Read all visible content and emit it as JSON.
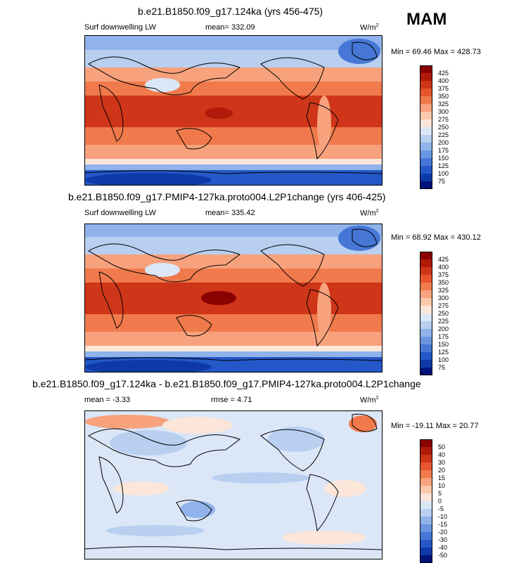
{
  "season": "MAM",
  "variable_label": "Surf downwelling LW",
  "units_base": "W/m",
  "units_exp": "2",
  "panels": [
    {
      "title": "b.e21.B1850.f09_g17.124ka (yrs 456-475)",
      "variable": "Surf downwelling LW",
      "stat": "mean= 332.09",
      "minmax": "Min = 69.46 Max = 428.73",
      "colorbar": [
        "425",
        "400",
        "375",
        "350",
        "325",
        "300",
        "275",
        "250",
        "225",
        "200",
        "175",
        "150",
        "125",
        "100",
        "75"
      ]
    },
    {
      "title": "b.e21.B1850.f09_g17.PMIP4-127ka.proto004.L2P1change (yrs 406-425)",
      "variable": "Surf downwelling LW",
      "stat": "mean= 335.42",
      "minmax": "Min = 68.92 Max = 430.12",
      "colorbar": [
        "425",
        "400",
        "375",
        "350",
        "325",
        "300",
        "275",
        "250",
        "225",
        "200",
        "175",
        "150",
        "125",
        "100",
        "75"
      ]
    },
    {
      "title": "b.e21.B1850.f09_g17.124ka - b.e21.B1850.f09_g17.PMIP4-127ka.proto004.L2P1change",
      "stat": "mean =  -3.33",
      "stat2": "rmse =   4.71",
      "minmax": "Min = -19.11 Max =  20.77",
      "colorbar": [
        "50",
        "40",
        "30",
        "20",
        "15",
        "10",
        "5",
        "0",
        "-5",
        "-10",
        "-15",
        "-20",
        "-30",
        "-40",
        "-50"
      ]
    }
  ],
  "colors": {
    "abs_scale": [
      "#8b0000",
      "#b01a0a",
      "#cf3518",
      "#e6552c",
      "#f07a4c",
      "#f7a27c",
      "#fcc9ab",
      "#fbe6d9",
      "#dbe6f7",
      "#b8cff0",
      "#8fb3ea",
      "#6a95e0",
      "#4677d6",
      "#2457c8",
      "#0d3aa8",
      "#00137a"
    ],
    "diff_scale": [
      "#8b0000",
      "#b01a0a",
      "#cf3518",
      "#e6552c",
      "#f07a4c",
      "#f7a27c",
      "#fcc9ab",
      "#fbe6d9",
      "#dbe6f7",
      "#b8cff0",
      "#8fb3ea",
      "#6a95e0",
      "#4677d6",
      "#2457c8",
      "#0d3aa8",
      "#00137a"
    ]
  }
}
